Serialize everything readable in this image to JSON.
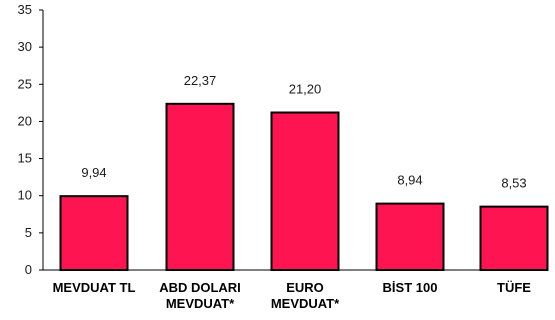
{
  "chart_data": {
    "type": "bar",
    "categories": [
      [
        "MEVDUAT TL"
      ],
      [
        "ABD DOLARI",
        "MEVDUAT*"
      ],
      [
        "EURO",
        "MEVDUAT*"
      ],
      [
        "BİST 100"
      ],
      [
        "TÜFE"
      ]
    ],
    "values": [
      9.94,
      22.37,
      21.2,
      8.94,
      8.53
    ],
    "value_labels": [
      "9,94",
      "22,37",
      "21,20",
      "8,94",
      "8,53"
    ],
    "ylim": [
      0,
      35
    ],
    "yticks": [
      0,
      5,
      10,
      15,
      20,
      25,
      30,
      35
    ],
    "title": "",
    "xlabel": "",
    "ylabel": "",
    "grid": false,
    "colors": {
      "bar_fill": "#ff1452",
      "bar_stroke": "#000000",
      "axis": "#000000"
    }
  }
}
